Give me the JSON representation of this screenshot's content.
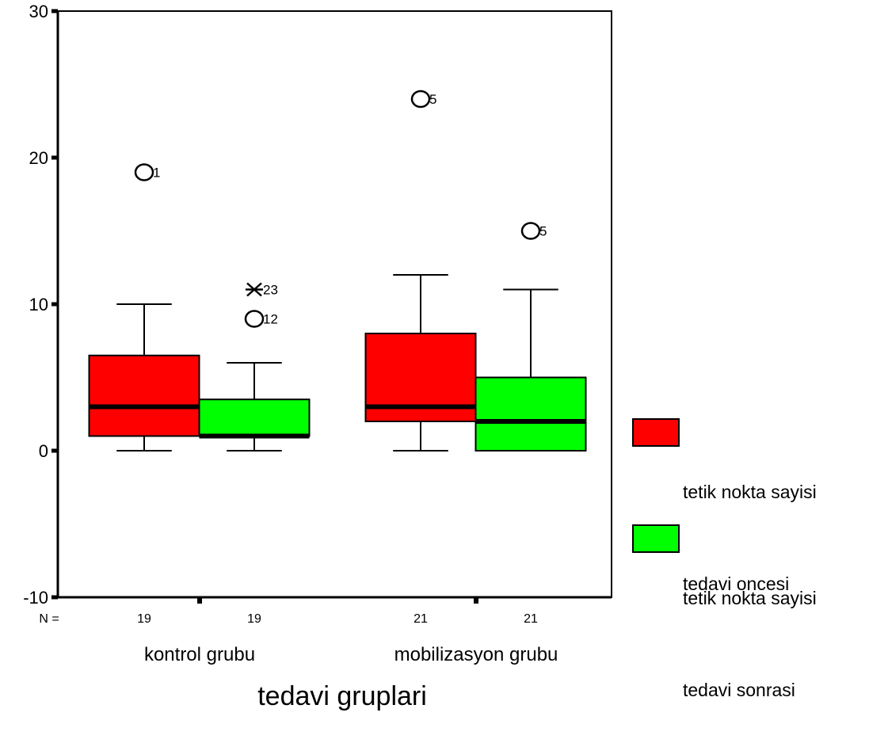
{
  "chart_data": {
    "type": "boxplot",
    "xlabel": "tedavi gruplari",
    "ylim": [
      -10,
      30
    ],
    "yticks": [
      -10,
      0,
      10,
      20,
      30
    ],
    "n_prefix": "N =",
    "categories": [
      "kontrol grubu",
      "mobilizasyon grubu"
    ],
    "series": [
      {
        "name": "tetik nokta sayisi tedavi oncesi",
        "color": "#ff0000",
        "boxes": [
          {
            "n": "19",
            "whisker_low": 0,
            "q1": 1,
            "median": 3,
            "q3": 6.5,
            "whisker_high": 10,
            "outliers": [
              {
                "value": 19,
                "label": "1",
                "marker": "circle"
              }
            ]
          },
          {
            "n": "21",
            "whisker_low": 0,
            "q1": 2,
            "median": 3,
            "q3": 8,
            "whisker_high": 12,
            "outliers": [
              {
                "value": 24,
                "label": "5",
                "marker": "circle"
              }
            ]
          }
        ]
      },
      {
        "name": "tetik nokta sayisi tedavi sonrasi",
        "color": "#00ff00",
        "boxes": [
          {
            "n": "19",
            "whisker_low": 0,
            "q1": 1,
            "median": 1,
            "q3": 3.5,
            "whisker_high": 6,
            "outliers": [
              {
                "value": 11,
                "label": "23",
                "marker": "star"
              },
              {
                "value": 9,
                "label": "12",
                "marker": "circle"
              }
            ]
          },
          {
            "n": "21",
            "whisker_low": 0,
            "q1": 0,
            "median": 2,
            "q3": 5,
            "whisker_high": 11,
            "outliers": [
              {
                "value": 15,
                "label": "5",
                "marker": "circle"
              }
            ]
          }
        ]
      }
    ]
  },
  "legend": [
    {
      "line1": "tetik nokta sayisi",
      "line2": "tedavi oncesi",
      "color": "#ff0000"
    },
    {
      "line1": "tetik nokta sayisi",
      "line2": "tedavi sonrasi",
      "color": "#00ff00"
    }
  ]
}
